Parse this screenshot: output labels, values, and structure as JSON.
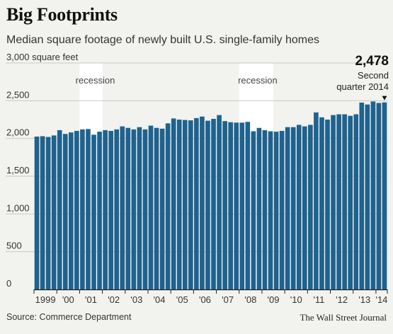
{
  "chart_data": {
    "type": "bar",
    "title": "Big Footprints",
    "subtitle": "Median square footage of newly built U.S. single-family homes",
    "ylabel": "square feet",
    "ylim": [
      0,
      3000
    ],
    "yticks": [
      0,
      500,
      1000,
      1500,
      2000,
      2500,
      3000
    ],
    "ytick_labels": [
      "0",
      "500",
      "1,000",
      "1,500",
      "2,000",
      "2,500",
      "3,000 square feet"
    ],
    "grid": true,
    "frequency": "quarterly",
    "year_labels": [
      "1999",
      "'00",
      "'01",
      "'02",
      "'03",
      "'04",
      "'05",
      "'06",
      "'07",
      "'08",
      "'09",
      "'10",
      "'11",
      "'12",
      "'13",
      "'14"
    ],
    "categories": [
      "Q1 1999",
      "Q2 1999",
      "Q3 1999",
      "Q4 1999",
      "Q1 2000",
      "Q2 2000",
      "Q3 2000",
      "Q4 2000",
      "Q1 2001",
      "Q2 2001",
      "Q3 2001",
      "Q4 2001",
      "Q1 2002",
      "Q2 2002",
      "Q3 2002",
      "Q4 2002",
      "Q1 2003",
      "Q2 2003",
      "Q3 2003",
      "Q4 2003",
      "Q1 2004",
      "Q2 2004",
      "Q3 2004",
      "Q4 2004",
      "Q1 2005",
      "Q2 2005",
      "Q3 2005",
      "Q4 2005",
      "Q1 2006",
      "Q2 2006",
      "Q3 2006",
      "Q4 2006",
      "Q1 2007",
      "Q2 2007",
      "Q3 2007",
      "Q4 2007",
      "Q1 2008",
      "Q2 2008",
      "Q3 2008",
      "Q4 2008",
      "Q1 2009",
      "Q2 2009",
      "Q3 2009",
      "Q4 2009",
      "Q1 2010",
      "Q2 2010",
      "Q3 2010",
      "Q4 2010",
      "Q1 2011",
      "Q2 2011",
      "Q3 2011",
      "Q4 2011",
      "Q1 2012",
      "Q2 2012",
      "Q3 2012",
      "Q4 2012",
      "Q1 2013",
      "Q2 2013",
      "Q3 2013",
      "Q4 2013",
      "Q1 2014",
      "Q2 2014"
    ],
    "values": [
      2025,
      2030,
      2020,
      2040,
      2110,
      2060,
      2080,
      2100,
      2120,
      2125,
      2050,
      2090,
      2110,
      2100,
      2120,
      2160,
      2140,
      2120,
      2150,
      2120,
      2170,
      2140,
      2130,
      2200,
      2265,
      2250,
      2245,
      2240,
      2270,
      2290,
      2235,
      2260,
      2310,
      2230,
      2215,
      2210,
      2210,
      2220,
      2095,
      2140,
      2110,
      2095,
      2090,
      2100,
      2150,
      2150,
      2180,
      2160,
      2180,
      2345,
      2280,
      2250,
      2310,
      2320,
      2320,
      2300,
      2320,
      2475,
      2450,
      2490,
      2470,
      2478
    ],
    "shaded_regions": [
      {
        "label": "recession",
        "start_index": 8,
        "end_index": 11
      },
      {
        "label": "recession",
        "start_index": 36,
        "end_index": 41
      }
    ],
    "annotation": {
      "index": 61,
      "value_label": "2,478",
      "text_line1": "Second",
      "text_line2": "quarter 2014"
    },
    "colors": {
      "bar": "#1f628e",
      "background": "#f2f2ee",
      "recession_band": "#ffffff",
      "gridline": "#c8c8c8",
      "baseline": "#222222"
    }
  },
  "footer": {
    "source": "Source: Commerce Department",
    "credit": "The Wall Street Journal"
  }
}
